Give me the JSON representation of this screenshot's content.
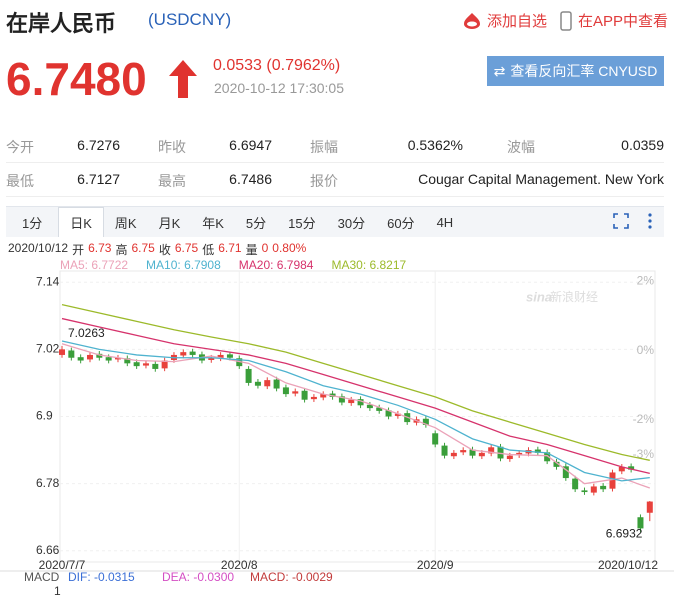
{
  "header": {
    "title": "在岸人民币",
    "code": "(USDCNY)",
    "actions": [
      "添加自选",
      "在APP中查看"
    ]
  },
  "quote": {
    "price": "6.7480",
    "change": "0.0533",
    "change_pct": "(0.7962%)",
    "time": "2020-10-12 17:30:05",
    "button": "查看反向汇率 CNYUSD"
  },
  "stats": {
    "rows": [
      [
        {
          "label": "今开",
          "value": "6.7276"
        },
        {
          "label": "昨收",
          "value": "6.6947"
        },
        {
          "label": "振幅",
          "value": "0.5362%"
        },
        {
          "label": "波幅",
          "value": "0.0359"
        }
      ],
      [
        {
          "label": "最低",
          "value": "6.7127"
        },
        {
          "label": "最高",
          "value": "6.7486"
        },
        {
          "label": "报价",
          "value": "Cougar Capital Management. New York"
        }
      ]
    ]
  },
  "tabs": {
    "items": [
      "1分",
      "日K",
      "周K",
      "月K",
      "年K",
      "5分",
      "15分",
      "30分",
      "60分",
      "4H"
    ],
    "active": 1
  },
  "chart_data": {
    "type": "candlestick",
    "info": {
      "date": "2020/10/12",
      "items": [
        {
          "label": "开",
          "value": 6.73
        },
        {
          "label": "高",
          "value": 6.75
        },
        {
          "label": "收",
          "value": 6.75
        },
        {
          "label": "低",
          "value": 6.71
        },
        {
          "label": "量",
          "value": 0
        }
      ],
      "pct": "0.80%"
    },
    "categories": [
      "2020/7/7",
      null,
      null,
      null,
      null,
      null,
      null,
      null,
      null,
      null,
      null,
      null,
      null,
      null,
      null,
      null,
      null,
      null,
      null,
      "2020/8",
      null,
      null,
      null,
      null,
      null,
      null,
      null,
      null,
      null,
      null,
      null,
      null,
      null,
      null,
      null,
      null,
      null,
      null,
      null,
      null,
      "2020/9",
      null,
      null,
      null,
      null,
      null,
      null,
      null,
      null,
      null,
      null,
      null,
      null,
      null,
      null,
      null,
      null,
      null,
      null,
      null,
      null,
      null,
      null,
      "2020/10/12"
    ],
    "open": [
      7.01,
      7.018,
      7.006,
      7.002,
      7.012,
      7.006,
      7.002,
      7.004,
      6.997,
      6.991,
      6.994,
      6.986,
      7.001,
      7.009,
      7.016,
      7.011,
      7.001,
      7.004,
      7.011,
      7.004,
      6.985,
      6.962,
      6.954,
      6.966,
      6.952,
      6.941,
      6.946,
      6.931,
      6.934,
      6.941,
      6.936,
      6.924,
      6.931,
      6.921,
      6.916,
      6.911,
      6.901,
      6.906,
      6.889,
      6.896,
      6.87,
      6.848,
      6.829,
      6.836,
      6.841,
      6.829,
      6.834,
      6.846,
      6.824,
      6.831,
      6.834,
      6.841,
      6.836,
      6.819,
      6.811,
      6.789,
      6.768,
      6.764,
      6.776,
      6.771,
      6.802,
      6.811,
      6.72,
      6.728
    ],
    "high": [
      7.0263,
      7.023,
      7.011,
      7.015,
      7.017,
      7.011,
      7.01,
      7.009,
      7.002,
      7.0,
      6.999,
      7.005,
      7.015,
      7.02,
      7.021,
      7.016,
      7.01,
      7.015,
      7.016,
      7.009,
      6.99,
      6.967,
      6.97,
      6.971,
      6.957,
      6.95,
      6.951,
      6.94,
      6.945,
      6.946,
      6.941,
      6.935,
      6.936,
      6.926,
      6.921,
      6.916,
      6.91,
      6.911,
      6.9,
      6.901,
      6.875,
      6.853,
      6.84,
      6.845,
      6.846,
      6.84,
      6.85,
      6.851,
      6.835,
      6.84,
      6.845,
      6.846,
      6.841,
      6.824,
      6.816,
      6.794,
      6.773,
      6.78,
      6.781,
      6.805,
      6.815,
      6.816,
      6.725,
      6.749
    ],
    "low": [
      7.005,
      7.0,
      6.995,
      6.997,
      7.0,
      6.995,
      6.997,
      6.99,
      6.985,
      6.986,
      6.98,
      6.981,
      6.996,
      7.004,
      7.005,
      6.995,
      6.996,
      6.999,
      7.0,
      6.985,
      6.955,
      6.95,
      6.949,
      6.945,
      6.935,
      6.936,
      6.925,
      6.926,
      6.929,
      6.93,
      6.92,
      6.919,
      6.915,
      6.91,
      6.905,
      6.895,
      6.896,
      6.885,
      6.884,
      6.88,
      6.845,
      6.825,
      6.824,
      6.831,
      6.825,
      6.824,
      6.829,
      6.82,
      6.819,
      6.826,
      6.829,
      6.83,
      6.815,
      6.805,
      6.785,
      6.765,
      6.76,
      6.759,
      6.765,
      6.766,
      6.797,
      6.8,
      6.6932,
      6.713
    ],
    "close": [
      7.02,
      7.005,
      7.0,
      7.01,
      7.005,
      7.0,
      7.005,
      6.995,
      6.99,
      6.995,
      6.985,
      7.0,
      7.01,
      7.015,
      7.01,
      7.0,
      7.005,
      7.01,
      7.005,
      6.99,
      6.96,
      6.955,
      6.965,
      6.95,
      6.94,
      6.945,
      6.93,
      6.935,
      6.94,
      6.935,
      6.925,
      6.93,
      6.92,
      6.915,
      6.91,
      6.9,
      6.905,
      6.89,
      6.895,
      6.885,
      6.85,
      6.83,
      6.835,
      6.84,
      6.83,
      6.835,
      6.845,
      6.825,
      6.83,
      6.835,
      6.84,
      6.835,
      6.82,
      6.81,
      6.79,
      6.77,
      6.765,
      6.775,
      6.77,
      6.8,
      6.81,
      6.805,
      6.7,
      6.748
    ],
    "up_color": "#e8413c",
    "down_color": "#3a9e3a",
    "lines": [
      {
        "name": "MA5: 6.7722",
        "color": "#eba2b8",
        "x": [
          0,
          4,
          8,
          12,
          16,
          20,
          24,
          28,
          32,
          36,
          40,
          44,
          48,
          52,
          56,
          60,
          63
        ],
        "values": [
          7.03,
          7.01,
          7.0,
          6.998,
          7.008,
          6.995,
          6.96,
          6.94,
          6.928,
          6.905,
          6.88,
          6.84,
          6.832,
          6.83,
          6.78,
          6.79,
          6.7722
        ]
      },
      {
        "name": "MA10: 6.7908",
        "color": "#4fb3cf",
        "x": [
          0,
          4,
          8,
          12,
          16,
          20,
          24,
          28,
          32,
          36,
          40,
          44,
          48,
          52,
          56,
          60,
          63
        ],
        "values": [
          7.035,
          7.02,
          7.01,
          7.005,
          7.005,
          7.0,
          6.98,
          6.955,
          6.94,
          6.92,
          6.895,
          6.86,
          6.84,
          6.835,
          6.8,
          6.785,
          6.7908
        ]
      },
      {
        "name": "MA20: 6.7984",
        "color": "#d6336c",
        "x": [
          0,
          4,
          8,
          12,
          16,
          20,
          24,
          28,
          32,
          36,
          40,
          44,
          48,
          52,
          56,
          60,
          63
        ],
        "values": [
          7.075,
          7.06,
          7.045,
          7.03,
          7.02,
          7.01,
          6.995,
          6.975,
          6.955,
          6.935,
          6.915,
          6.89,
          6.865,
          6.85,
          6.83,
          6.81,
          6.7984
        ]
      },
      {
        "name": "MA30: 6.8217",
        "color": "#9cba2a",
        "x": [
          0,
          4,
          8,
          12,
          16,
          20,
          24,
          28,
          32,
          36,
          40,
          44,
          48,
          52,
          56,
          60,
          63
        ],
        "values": [
          7.1,
          7.085,
          7.07,
          7.055,
          7.042,
          7.03,
          7.015,
          6.995,
          6.975,
          6.955,
          6.935,
          6.91,
          6.89,
          6.87,
          6.85,
          6.832,
          6.8217
        ]
      }
    ],
    "ylim": [
      6.64,
      7.16
    ],
    "yticks": [
      7.14,
      7.02,
      6.9,
      6.78,
      6.66
    ],
    "y2lim": [
      -6.1,
      2.3
    ],
    "y2ticks": [
      {
        "value": 2,
        "label": "2%"
      },
      {
        "value": 0,
        "label": "0%"
      },
      {
        "value": -2,
        "label": "-2%"
      },
      {
        "value": -3,
        "label": "-3%"
      }
    ],
    "grid": true,
    "annotations": {
      "max": 7.0263,
      "min": 6.6932
    },
    "watermark": "新浪财经",
    "logo": "sina",
    "macd": {
      "title": "MACD",
      "items": [
        {
          "label": "DIF: -0.0315",
          "color": "#3b6fd6"
        },
        {
          "label": "DEA: -0.0300",
          "color": "#d44fc4"
        },
        {
          "label": "MACD: -0.0029",
          "color": "#c23b3b"
        }
      ],
      "axis_label": 1
    }
  }
}
